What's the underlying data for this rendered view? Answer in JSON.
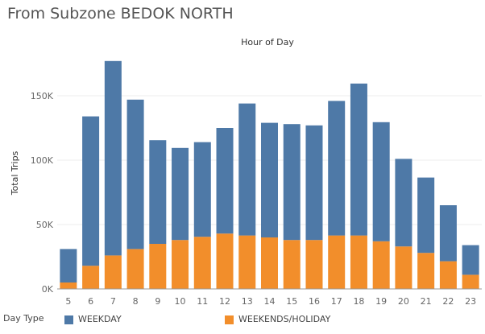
{
  "title": "From Subzone BEDOK NORTH",
  "colors": {
    "weekday": "#4e79a7",
    "weekend": "#f28e2b",
    "grid": "#eeeeee",
    "axis": "#666666"
  },
  "legend": {
    "title": "Day Type",
    "items": [
      "WEEKDAY",
      "WEEKENDS/HOLIDAY"
    ]
  },
  "chart_data": {
    "type": "bar",
    "stacked": true,
    "title": "",
    "column_header": "Hour of Day",
    "ylabel": "Total Trips",
    "ylim": [
      0,
      185000
    ],
    "yticks": [
      0,
      50000,
      100000,
      150000
    ],
    "ytick_labels": [
      "0K",
      "50K",
      "100K",
      "150K"
    ],
    "grid": true,
    "categories": [
      "5",
      "6",
      "7",
      "8",
      "9",
      "10",
      "11",
      "12",
      "13",
      "14",
      "15",
      "16",
      "17",
      "18",
      "19",
      "20",
      "21",
      "22",
      "23"
    ],
    "series": [
      {
        "name": "WEEKENDS/HOLIDAY",
        "values": [
          5000,
          18000,
          26000,
          31000,
          35000,
          38000,
          40500,
          43000,
          41500,
          40000,
          38000,
          38000,
          41500,
          41500,
          37000,
          33000,
          28000,
          21500,
          11000
        ]
      },
      {
        "name": "WEEKDAY",
        "values": [
          26000,
          116000,
          151000,
          116000,
          80500,
          71500,
          73500,
          82000,
          102500,
          89000,
          90000,
          89000,
          104500,
          118000,
          92500,
          68000,
          58500,
          43500,
          23000
        ]
      }
    ]
  }
}
